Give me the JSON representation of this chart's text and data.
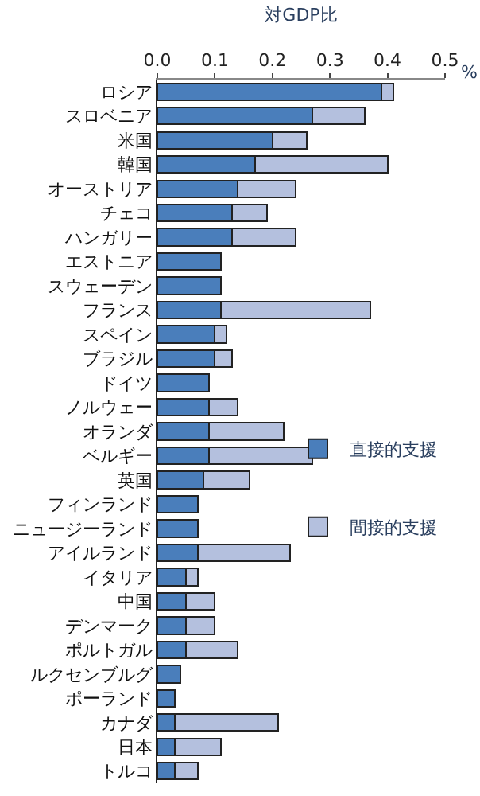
{
  "chart_data": {
    "type": "bar",
    "orientation": "horizontal",
    "stacked": true,
    "xlabel": "対GDP比",
    "categories": [
      "ロシア",
      "スロベニア",
      "米国",
      "韓国",
      "オーストリア",
      "チェコ",
      "ハンガリー",
      "エストニア",
      "スウェーデン",
      "フランス",
      "スペイン",
      "ブラジル",
      "ドイツ",
      "ノルウェー",
      "オランダ",
      "ベルギー",
      "英国",
      "フィンランド",
      "ニュージーランド",
      "アイルランド",
      "イタリア",
      "中国",
      "デンマーク",
      "ポルトガル",
      "ルクセンブルグ",
      "ポーランド",
      "カナダ",
      "日本",
      "トルコ"
    ],
    "series": [
      {
        "name": "直接的支援",
        "color": "#4a7ebb",
        "values": [
          0.39,
          0.27,
          0.2,
          0.17,
          0.14,
          0.13,
          0.13,
          0.11,
          0.11,
          0.11,
          0.1,
          0.1,
          0.09,
          0.09,
          0.09,
          0.09,
          0.08,
          0.07,
          0.07,
          0.07,
          0.05,
          0.05,
          0.05,
          0.05,
          0.04,
          0.03,
          0.03,
          0.03,
          0.03
        ]
      },
      {
        "name": "間接的支援",
        "color": "#b4c0de",
        "values": [
          0.02,
          0.09,
          0.06,
          0.23,
          0.1,
          0.06,
          0.11,
          null,
          null,
          0.26,
          0.02,
          0.03,
          null,
          0.05,
          0.13,
          0.18,
          0.08,
          null,
          null,
          0.16,
          0.02,
          0.05,
          0.05,
          0.09,
          null,
          null,
          0.18,
          0.08,
          0.04
        ]
      }
    ],
    "xlim": [
      0,
      0.5
    ],
    "xticks": [
      {
        "value": 0,
        "label": "0.0"
      },
      0.1,
      0.2,
      0.3,
      0.4,
      0.5
    ],
    "annotations": [
      "%"
    ],
    "legend": "right"
  }
}
